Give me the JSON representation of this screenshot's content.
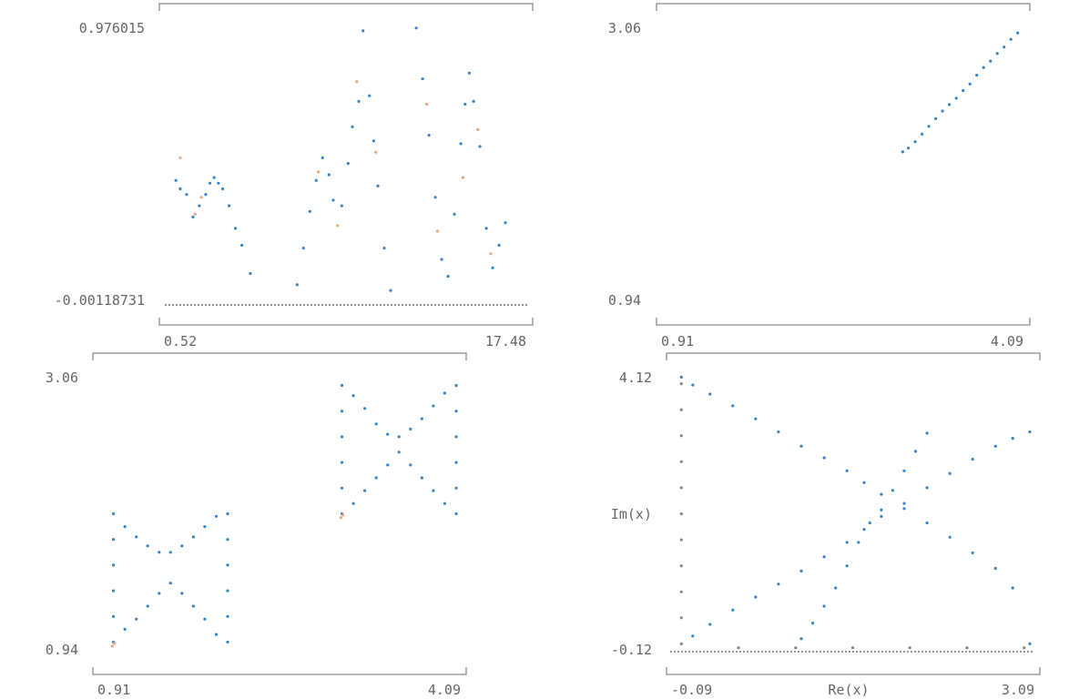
{
  "colors": {
    "series": "#3a84c6",
    "accent": "#e8a77a",
    "baseline": "#888888",
    "frame": "#8a8a8a",
    "text": "#666666"
  },
  "chart_data": [
    {
      "type": "scatter",
      "title": "",
      "xlabel": "",
      "ylabel": "",
      "xlim": [
        0.52,
        17.48
      ],
      "ylim": [
        -0.00118731,
        0.976015
      ],
      "x_ticks": [
        "0.52",
        "17.48"
      ],
      "y_ticks": [
        "0.976015",
        "-0.00118731"
      ],
      "grid": false,
      "series": [
        {
          "points": [
            [
              1.0,
              0.44
            ],
            [
              1.2,
              0.41
            ],
            [
              1.5,
              0.39
            ],
            [
              1.8,
              0.31
            ],
            [
              2.1,
              0.35
            ],
            [
              2.4,
              0.39
            ],
            [
              2.6,
              0.43
            ],
            [
              2.8,
              0.45
            ],
            [
              3.0,
              0.43
            ],
            [
              3.2,
              0.41
            ],
            [
              3.5,
              0.35
            ],
            [
              3.8,
              0.27
            ],
            [
              4.1,
              0.21
            ],
            [
              4.5,
              0.11
            ],
            [
              6.7,
              0.07
            ],
            [
              7.0,
              0.2
            ],
            [
              7.3,
              0.33
            ],
            [
              7.6,
              0.44
            ],
            [
              7.9,
              0.52
            ],
            [
              8.2,
              0.46
            ],
            [
              8.4,
              0.37
            ],
            [
              8.8,
              0.35
            ],
            [
              9.1,
              0.5
            ],
            [
              9.3,
              0.63
            ],
            [
              9.6,
              0.72
            ],
            [
              9.8,
              0.97
            ],
            [
              10.1,
              0.74
            ],
            [
              10.3,
              0.58
            ],
            [
              10.5,
              0.42
            ],
            [
              10.8,
              0.2
            ],
            [
              11.1,
              0.05
            ],
            [
              12.3,
              0.98
            ],
            [
              12.6,
              0.8
            ],
            [
              12.9,
              0.6
            ],
            [
              13.2,
              0.38
            ],
            [
              13.5,
              0.16
            ],
            [
              13.8,
              0.1
            ],
            [
              14.1,
              0.32
            ],
            [
              14.4,
              0.57
            ],
            [
              14.6,
              0.71
            ],
            [
              14.8,
              0.82
            ],
            [
              15.0,
              0.72
            ],
            [
              15.3,
              0.56
            ],
            [
              15.6,
              0.27
            ],
            [
              15.9,
              0.13
            ],
            [
              16.2,
              0.21
            ],
            [
              16.5,
              0.29
            ]
          ]
        },
        {
          "points": [
            [
              1.2,
              0.52
            ],
            [
              1.9,
              0.32
            ],
            [
              2.2,
              0.38
            ],
            [
              7.7,
              0.47
            ],
            [
              8.6,
              0.28
            ],
            [
              9.5,
              0.79
            ],
            [
              10.4,
              0.54
            ],
            [
              12.8,
              0.71
            ],
            [
              13.3,
              0.26
            ],
            [
              14.5,
              0.45
            ],
            [
              15.2,
              0.62
            ],
            [
              15.8,
              0.18
            ]
          ]
        }
      ]
    },
    {
      "type": "scatter",
      "title": "",
      "xlabel": "",
      "ylabel": "",
      "xlim": [
        0.91,
        4.09
      ],
      "ylim": [
        0.94,
        3.06
      ],
      "x_ticks": [
        "0.91",
        "4.09"
      ],
      "y_ticks": [
        "3.06",
        "0.94"
      ],
      "grid": false,
      "series": [
        {
          "points": [
            [
              3.03,
              2.1
            ],
            [
              3.08,
              2.13
            ],
            [
              3.14,
              2.18
            ],
            [
              3.2,
              2.24
            ],
            [
              3.26,
              2.3
            ],
            [
              3.32,
              2.36
            ],
            [
              3.38,
              2.42
            ],
            [
              3.44,
              2.47
            ],
            [
              3.5,
              2.52
            ],
            [
              3.56,
              2.58
            ],
            [
              3.62,
              2.63
            ],
            [
              3.68,
              2.7
            ],
            [
              3.74,
              2.76
            ],
            [
              3.8,
              2.81
            ],
            [
              3.86,
              2.87
            ],
            [
              3.92,
              2.92
            ],
            [
              3.98,
              2.98
            ],
            [
              4.04,
              3.03
            ]
          ]
        }
      ]
    },
    {
      "type": "scatter",
      "title": "",
      "xlabel": "",
      "ylabel": "",
      "xlim": [
        0.91,
        4.09
      ],
      "ylim": [
        0.94,
        3.06
      ],
      "x_ticks": [
        "0.91",
        "4.09"
      ],
      "y_ticks": [
        "3.06",
        "0.94"
      ],
      "grid": false,
      "series": [
        {
          "points": [
            [
              1.05,
              1.0
            ],
            [
              1.05,
              1.2
            ],
            [
              1.05,
              1.4
            ],
            [
              1.05,
              1.6
            ],
            [
              1.05,
              1.8
            ],
            [
              1.05,
              2.0
            ],
            [
              1.15,
              1.9
            ],
            [
              1.25,
              1.82
            ],
            [
              1.35,
              1.75
            ],
            [
              1.45,
              1.7
            ],
            [
              1.55,
              1.7
            ],
            [
              1.65,
              1.75
            ],
            [
              1.75,
              1.82
            ],
            [
              1.85,
              1.9
            ],
            [
              1.95,
              1.98
            ],
            [
              2.05,
              1.0
            ],
            [
              2.05,
              1.2
            ],
            [
              2.05,
              1.4
            ],
            [
              2.05,
              1.6
            ],
            [
              2.05,
              1.8
            ],
            [
              2.05,
              2.0
            ],
            [
              1.15,
              1.1
            ],
            [
              1.25,
              1.18
            ],
            [
              1.35,
              1.28
            ],
            [
              1.45,
              1.38
            ],
            [
              1.55,
              1.46
            ],
            [
              1.65,
              1.38
            ],
            [
              1.75,
              1.28
            ],
            [
              1.85,
              1.18
            ],
            [
              1.95,
              1.06
            ],
            [
              3.05,
              2.0
            ],
            [
              3.05,
              2.2
            ],
            [
              3.05,
              2.4
            ],
            [
              3.05,
              2.6
            ],
            [
              3.05,
              2.8
            ],
            [
              3.05,
              3.0
            ],
            [
              3.15,
              2.92
            ],
            [
              3.25,
              2.82
            ],
            [
              3.35,
              2.7
            ],
            [
              3.45,
              2.62
            ],
            [
              3.55,
              2.6
            ],
            [
              3.65,
              2.66
            ],
            [
              3.75,
              2.74
            ],
            [
              3.85,
              2.84
            ],
            [
              3.95,
              2.94
            ],
            [
              4.05,
              2.0
            ],
            [
              4.05,
              2.2
            ],
            [
              4.05,
              2.4
            ],
            [
              4.05,
              2.6
            ],
            [
              4.05,
              2.8
            ],
            [
              4.05,
              3.0
            ],
            [
              3.15,
              2.08
            ],
            [
              3.25,
              2.18
            ],
            [
              3.35,
              2.28
            ],
            [
              3.45,
              2.38
            ],
            [
              3.55,
              2.48
            ],
            [
              3.65,
              2.38
            ],
            [
              3.75,
              2.28
            ],
            [
              3.85,
              2.18
            ],
            [
              3.95,
              2.08
            ]
          ]
        },
        {
          "points": [
            [
              1.04,
              0.97
            ],
            [
              1.06,
              0.99
            ],
            [
              3.04,
              1.97
            ],
            [
              3.06,
              1.99
            ]
          ]
        }
      ]
    },
    {
      "type": "scatter",
      "title": "",
      "xlabel": "Re(x)",
      "ylabel": "Im(x)",
      "xlim": [
        -0.09,
        3.09
      ],
      "ylim": [
        -0.12,
        4.12
      ],
      "x_ticks": [
        "-0.09",
        "Re(x)",
        "3.09"
      ],
      "y_ticks": [
        "4.12",
        "Im(x)",
        "-0.12"
      ],
      "grid": false,
      "series": [
        {
          "points": [
            [
              0.0,
              4.1
            ],
            [
              0.1,
              3.98
            ],
            [
              0.25,
              3.84
            ],
            [
              0.45,
              3.66
            ],
            [
              0.65,
              3.46
            ],
            [
              0.85,
              3.26
            ],
            [
              1.05,
              3.04
            ],
            [
              1.25,
              2.86
            ],
            [
              1.45,
              2.66
            ],
            [
              1.6,
              2.48
            ],
            [
              1.75,
              2.3
            ],
            [
              1.95,
              2.08
            ],
            [
              2.15,
              1.86
            ],
            [
              2.35,
              1.64
            ],
            [
              2.55,
              1.4
            ],
            [
              2.75,
              1.16
            ],
            [
              2.9,
              0.86
            ],
            [
              3.05,
              0.0
            ],
            [
              0.1,
              0.12
            ],
            [
              0.25,
              0.3
            ],
            [
              0.45,
              0.52
            ],
            [
              0.65,
              0.72
            ],
            [
              0.85,
              0.92
            ],
            [
              1.05,
              1.12
            ],
            [
              1.25,
              1.34
            ],
            [
              1.45,
              1.56
            ],
            [
              1.6,
              1.76
            ],
            [
              1.75,
              1.96
            ],
            [
              1.95,
              2.16
            ],
            [
              2.15,
              2.4
            ],
            [
              2.35,
              2.62
            ],
            [
              2.55,
              2.84
            ],
            [
              2.75,
              3.04
            ],
            [
              2.9,
              3.16
            ],
            [
              3.05,
              3.26
            ],
            [
              1.05,
              0.08
            ],
            [
              1.15,
              0.32
            ],
            [
              1.25,
              0.58
            ],
            [
              1.35,
              0.86
            ],
            [
              1.45,
              1.2
            ],
            [
              1.55,
              1.56
            ],
            [
              1.65,
              1.86
            ],
            [
              1.75,
              2.06
            ],
            [
              1.85,
              2.36
            ],
            [
              1.95,
              2.66
            ],
            [
              2.05,
              2.96
            ],
            [
              2.15,
              3.24
            ]
          ]
        },
        {
          "points": [
            [
              0.0,
              0.0
            ],
            [
              0.0,
              0.4
            ],
            [
              0.0,
              0.8
            ],
            [
              0.0,
              1.2
            ],
            [
              0.0,
              1.6
            ],
            [
              0.0,
              2.0
            ],
            [
              0.0,
              2.4
            ],
            [
              0.0,
              2.8
            ],
            [
              0.0,
              3.2
            ],
            [
              0.0,
              3.6
            ],
            [
              0.0,
              4.0
            ],
            [
              0.5,
              -0.06
            ],
            [
              1.0,
              -0.06
            ],
            [
              1.5,
              -0.06
            ],
            [
              2.0,
              -0.06
            ],
            [
              2.5,
              -0.06
            ],
            [
              3.0,
              -0.06
            ]
          ]
        }
      ]
    }
  ]
}
